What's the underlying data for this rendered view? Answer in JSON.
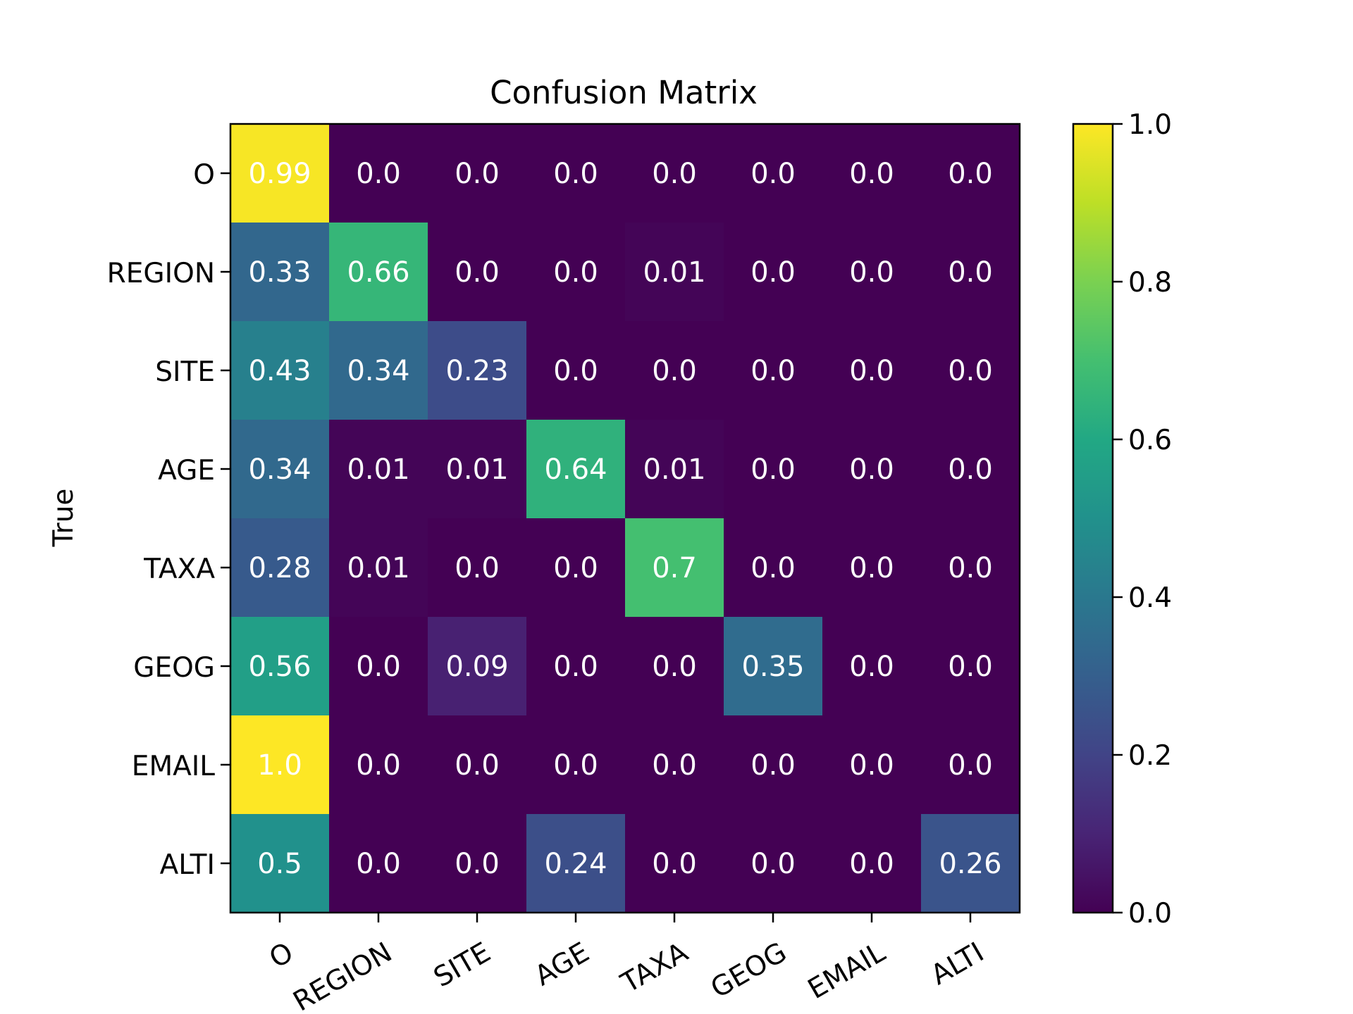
{
  "chart_data": {
    "type": "heatmap",
    "title": "Confusion Matrix",
    "xlabel": "",
    "ylabel": "True",
    "row_labels": [
      "O",
      "REGION",
      "SITE",
      "AGE",
      "TAXA",
      "GEOG",
      "EMAIL",
      "ALTI"
    ],
    "col_labels": [
      "O",
      "REGION",
      "SITE",
      "AGE",
      "TAXA",
      "GEOG",
      "EMAIL",
      "ALTI"
    ],
    "values": [
      [
        0.99,
        0.0,
        0.0,
        0.0,
        0.0,
        0.0,
        0.0,
        0.0
      ],
      [
        0.33,
        0.66,
        0.0,
        0.0,
        0.01,
        0.0,
        0.0,
        0.0
      ],
      [
        0.43,
        0.34,
        0.23,
        0.0,
        0.0,
        0.0,
        0.0,
        0.0
      ],
      [
        0.34,
        0.01,
        0.01,
        0.64,
        0.01,
        0.0,
        0.0,
        0.0
      ],
      [
        0.28,
        0.01,
        0.0,
        0.0,
        0.7,
        0.0,
        0.0,
        0.0
      ],
      [
        0.56,
        0.0,
        0.09,
        0.0,
        0.0,
        0.35,
        0.0,
        0.0
      ],
      [
        1.0,
        0.0,
        0.0,
        0.0,
        0.0,
        0.0,
        0.0,
        0.0
      ],
      [
        0.5,
        0.0,
        0.0,
        0.24,
        0.0,
        0.0,
        0.0,
        0.26
      ]
    ],
    "cell_text": [
      [
        "0.99",
        "0.0",
        "0.0",
        "0.0",
        "0.0",
        "0.0",
        "0.0",
        "0.0"
      ],
      [
        "0.33",
        "0.66",
        "0.0",
        "0.0",
        "0.01",
        "0.0",
        "0.0",
        "0.0"
      ],
      [
        "0.43",
        "0.34",
        "0.23",
        "0.0",
        "0.0",
        "0.0",
        "0.0",
        "0.0"
      ],
      [
        "0.34",
        "0.01",
        "0.01",
        "0.64",
        "0.01",
        "0.0",
        "0.0",
        "0.0"
      ],
      [
        "0.28",
        "0.01",
        "0.0",
        "0.0",
        "0.7",
        "0.0",
        "0.0",
        "0.0"
      ],
      [
        "0.56",
        "0.0",
        "0.09",
        "0.0",
        "0.0",
        "0.35",
        "0.0",
        "0.0"
      ],
      [
        "1.0",
        "0.0",
        "0.0",
        "0.0",
        "0.0",
        "0.0",
        "0.0",
        "0.0"
      ],
      [
        "0.5",
        "0.0",
        "0.0",
        "0.24",
        "0.0",
        "0.0",
        "0.0",
        "0.26"
      ]
    ],
    "colormap": "viridis",
    "colorbar": {
      "range": [
        0.0,
        1.0
      ],
      "ticks": [
        0.0,
        0.2,
        0.4,
        0.6,
        0.8,
        1.0
      ],
      "tick_labels": [
        "0.0",
        "0.2",
        "0.4",
        "0.6",
        "0.8",
        "1.0"
      ]
    },
    "cell_text_color": "#ffffff"
  }
}
